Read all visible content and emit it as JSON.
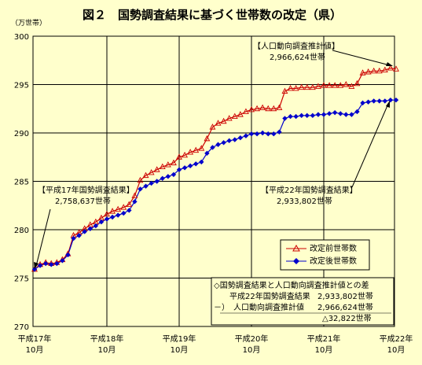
{
  "chart_data": {
    "type": "line",
    "title": "図２　国勢調査結果に基づく世帯数の改定（県）",
    "ylabel": "（万世帯）",
    "ylim": [
      270,
      300
    ],
    "yticks": [
      "270",
      "275",
      "280",
      "285",
      "290",
      "295",
      "300"
    ],
    "xticks": [
      {
        "label1": "平成17年",
        "label2": "10月"
      },
      {
        "label1": "平成18年",
        "label2": "10月"
      },
      {
        "label1": "平成19年",
        "label2": "10月"
      },
      {
        "label1": "平成20年",
        "label2": "10月"
      },
      {
        "label1": "平成21年",
        "label2": "10月"
      },
      {
        "label1": "平成22年",
        "label2": "10月"
      }
    ],
    "grid": true,
    "series": [
      {
        "name": "改定前世帯数",
        "color": "#cc0000",
        "marker": "triangle",
        "values": [
          275.9,
          276.4,
          276.6,
          276.5,
          276.6,
          276.9,
          277.5,
          279.4,
          279.7,
          280.1,
          280.5,
          280.8,
          281.2,
          281.6,
          281.9,
          282.1,
          282.3,
          282.6,
          283.5,
          285.1,
          285.6,
          285.9,
          286.2,
          286.5,
          286.7,
          286.9,
          287.5,
          287.7,
          288.0,
          288.2,
          288.4,
          289.4,
          290.6,
          291.0,
          291.2,
          291.5,
          291.7,
          291.9,
          292.2,
          292.4,
          292.5,
          292.6,
          292.5,
          292.5,
          292.6,
          294.3,
          294.6,
          294.6,
          294.7,
          294.7,
          294.7,
          294.8,
          294.9,
          294.9,
          294.9,
          294.9,
          295.0,
          294.8,
          295.1,
          296.2,
          296.3,
          296.4,
          296.4,
          296.5,
          296.7,
          296.6
        ]
      },
      {
        "name": "改定後世帯数",
        "color": "#0000cc",
        "marker": "diamond",
        "values": [
          275.9,
          276.3,
          276.5,
          276.4,
          276.5,
          276.8,
          277.4,
          279.1,
          279.4,
          279.8,
          280.1,
          280.4,
          280.8,
          281.1,
          281.3,
          281.5,
          281.7,
          282.0,
          282.9,
          284.2,
          284.5,
          284.8,
          285.0,
          285.3,
          285.5,
          285.7,
          286.2,
          286.4,
          286.6,
          286.8,
          287.0,
          287.9,
          288.5,
          288.8,
          289.0,
          289.2,
          289.3,
          289.5,
          289.7,
          289.9,
          289.9,
          290.0,
          289.9,
          289.9,
          290.1,
          291.5,
          291.7,
          291.7,
          291.8,
          291.8,
          291.8,
          291.9,
          291.9,
          292.0,
          292.1,
          292.0,
          291.9,
          291.9,
          292.2,
          293.1,
          293.2,
          293.3,
          293.3,
          293.3,
          293.4,
          293.4
        ]
      }
    ],
    "annotations": {
      "start": {
        "line1": "【平成17年国勢調査結果】",
        "line2": "2,758,637世帯"
      },
      "end_before": {
        "line1": "【人口動向調査推計値】",
        "line2": "2,966,624世帯"
      },
      "end_after": {
        "line1": "【平成22年国勢調査結果】",
        "line2": "2,933,802世帯"
      }
    },
    "diff_box": {
      "title": "◇国勢調査結果と人口動向調査推計値との差",
      "row1_label": "平成22年国勢調査結果",
      "row1_value": "2,933,802世帯",
      "row2_op": "－）",
      "row2_label": "人口動向調査推計値",
      "row2_value": "2,966,624世帯",
      "result": "△32,822世帯"
    }
  }
}
